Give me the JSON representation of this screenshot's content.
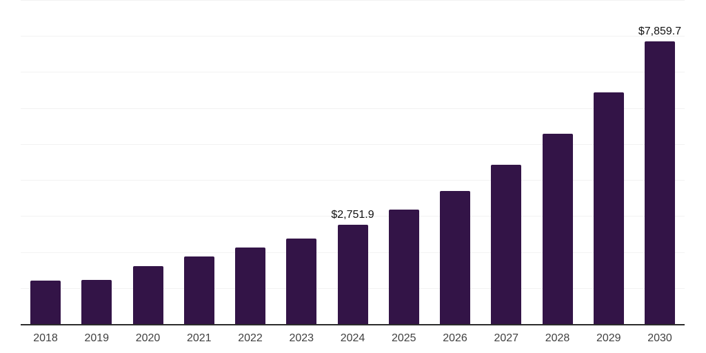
{
  "chart_data": {
    "type": "bar",
    "title": "",
    "xlabel": "",
    "ylabel": "",
    "categories": [
      "2018",
      "2019",
      "2020",
      "2021",
      "2022",
      "2023",
      "2024",
      "2025",
      "2026",
      "2027",
      "2028",
      "2029",
      "2030"
    ],
    "values": [
      1210,
      1225,
      1610,
      1880,
      2120,
      2380,
      2751.9,
      3180,
      3700,
      4420,
      5290,
      6430,
      7859.7
    ],
    "annotations": [
      {
        "index": 6,
        "text": "$2,751.9"
      },
      {
        "index": 12,
        "text": "$7,859.7"
      }
    ],
    "ylim": [
      0,
      9000
    ],
    "gridline_step": 1000,
    "grid": "horizontal-only",
    "legend": "none",
    "y_tick_labels_visible": false
  },
  "colors": {
    "background": "#ffffff",
    "bar": "#331447",
    "axis_line": "#2b2b2b",
    "gridline": "#f2f2f2",
    "tick_label": "#404040",
    "data_label": "#111111"
  }
}
